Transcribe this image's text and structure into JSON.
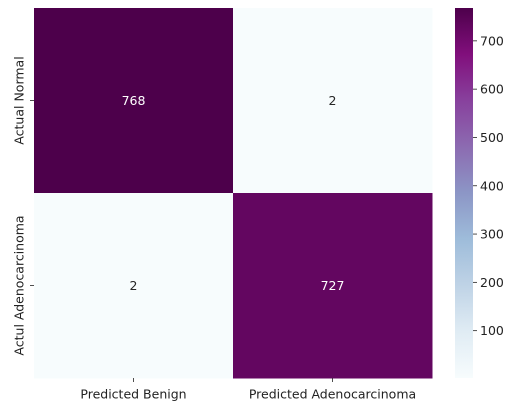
{
  "chart_data": {
    "type": "heatmap",
    "title": "",
    "xlabel": "",
    "ylabel": "",
    "x_categories": [
      "Predicted Benign",
      "Predicted Adenocarcinoma"
    ],
    "y_categories": [
      "Actual Normal",
      "Actul Adenocarcinoma"
    ],
    "values": [
      [
        768,
        2
      ],
      [
        2,
        727
      ]
    ],
    "annotations": [
      "768",
      "2",
      "2",
      "727"
    ],
    "colormap": "BuPu",
    "color_range": [
      2,
      768
    ],
    "colorbar": {
      "ticks": [
        100,
        200,
        300,
        400,
        500,
        600,
        700
      ],
      "tick_labels": [
        "100",
        "200",
        "300",
        "400",
        "500",
        "600",
        "700"
      ]
    },
    "colors": {
      "low": "#f7fcfd",
      "high": "#4d004b",
      "annotation_dark_bg_text": "#ffffff",
      "annotation_light_bg_text": "#262626"
    }
  }
}
